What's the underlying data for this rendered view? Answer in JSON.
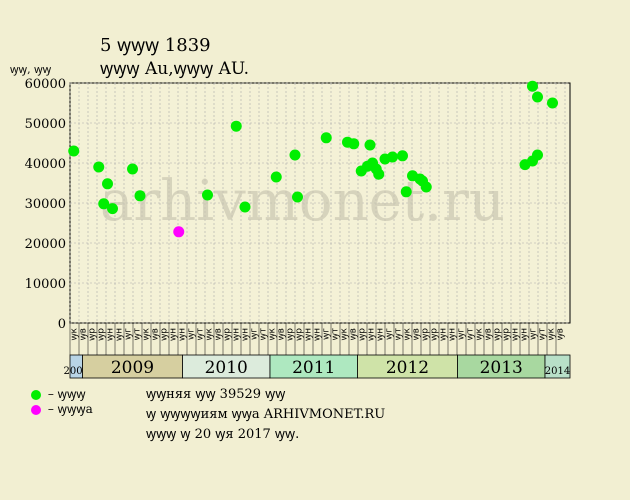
{
  "header": {
    "line1": "5 ꝡꝡꝡ 1839",
    "line2": "ꝡꝡꝡ Au,ꝡꝡꝡ AU."
  },
  "watermark": "arhivmonet.ru",
  "legend": {
    "green": {
      "label": "– ꝡꝡꝡ",
      "color": "#00ee00"
    },
    "magenta": {
      "label": "– ꝡꝡꝡa",
      "color": "#ff00ff"
    }
  },
  "info": {
    "line1": "ꝡꝡняя ꝡꝡ 39529 ꝡꝡ",
    "line2": "ꝡ ꝡꝡꝡꝡиям ꝡꝡa ARHIVMONET.RU",
    "line3": "ꝡꝡꝡ ꝡ 20 ꝡя 2017 ꝡꝡ."
  },
  "chart_data": {
    "type": "scatter",
    "ylabel": "ꝡꝡ, ꝡꝡ",
    "ylim": [
      0,
      60000
    ],
    "yticks": [
      0,
      10000,
      20000,
      30000,
      40000,
      50000,
      60000
    ],
    "grid": true,
    "x_slots": [
      "ꝡк",
      "ꝡв",
      "ꝡр",
      "ꝡр",
      "ꝡн",
      "ꝡн",
      "ꝡг",
      "ꝡт",
      "ꝡк",
      "ꝡв",
      "ꝡр",
      "ꝡн",
      "ꝡн",
      "ꝡг",
      "ꝡт",
      "ꝡк",
      "ꝡв",
      "ꝡр",
      "ꝡн",
      "ꝡн",
      "ꝡг",
      "ꝡт",
      "ꝡк",
      "ꝡв",
      "ꝡр",
      "ꝡр",
      "ꝡн",
      "ꝡн",
      "ꝡг",
      "ꝡт",
      "ꝡк",
      "ꝡв",
      "ꝡр",
      "ꝡн",
      "ꝡн",
      "ꝡг",
      "ꝡт",
      "ꝡк",
      "ꝡв",
      "ꝡр",
      "ꝡр",
      "ꝡн",
      "ꝡн",
      "ꝡг",
      "ꝡт",
      "ꝡк",
      "ꝡв",
      "ꝡр",
      "ꝡр",
      "ꝡн",
      "ꝡн",
      "ꝡг",
      "ꝡт",
      "ꝡк",
      "ꝡв",
      "ꝡр"
    ],
    "years": [
      {
        "label": "2008",
        "start": 0,
        "end": 1,
        "color": "#b8d4e6",
        "small": true
      },
      {
        "label": "2009",
        "start": 1,
        "end": 9,
        "color": "#d6cfa0",
        "small": false
      },
      {
        "label": "2010",
        "start": 9,
        "end": 16,
        "color": "#dcebdc",
        "small": false
      },
      {
        "label": "2011",
        "start": 16,
        "end": 23,
        "color": "#aee8c0",
        "small": false
      },
      {
        "label": "2012",
        "start": 23,
        "end": 31,
        "color": "#cfe3a8",
        "small": false
      },
      {
        "label": "2013",
        "start": 31,
        "end": 38,
        "color": "#a8d8a0",
        "small": false
      },
      {
        "label": "2014",
        "start": 38,
        "end": 40,
        "color": "#b8e0c8",
        "small": true
      }
    ],
    "series": [
      {
        "key": "green",
        "points": [
          [
            0.3,
            43000
          ],
          [
            2.3,
            39000
          ],
          [
            2.7,
            29800
          ],
          [
            3.0,
            34800
          ],
          [
            3.4,
            28600
          ],
          [
            5.0,
            38500
          ],
          [
            5.6,
            31800
          ],
          [
            11.0,
            32000
          ],
          [
            13.3,
            49200
          ],
          [
            14.0,
            29000
          ],
          [
            16.5,
            36500
          ],
          [
            18.0,
            42000
          ],
          [
            18.2,
            31500
          ],
          [
            20.5,
            46300
          ],
          [
            22.2,
            45200
          ],
          [
            22.7,
            44800
          ],
          [
            23.3,
            38000
          ],
          [
            23.8,
            39200
          ],
          [
            24.2,
            40000
          ],
          [
            24.0,
            44500
          ],
          [
            24.5,
            38500
          ],
          [
            24.7,
            37200
          ],
          [
            25.2,
            41000
          ],
          [
            25.8,
            41500
          ],
          [
            26.6,
            41800
          ],
          [
            26.9,
            32800
          ],
          [
            27.4,
            36800
          ],
          [
            28.0,
            36000
          ],
          [
            28.2,
            35500
          ],
          [
            28.5,
            34000
          ],
          [
            36.4,
            39600
          ],
          [
            37.0,
            40500
          ],
          [
            37.0,
            59200
          ],
          [
            37.4,
            42000
          ],
          [
            37.4,
            56500
          ],
          [
            38.6,
            55000
          ]
        ]
      },
      {
        "key": "magenta",
        "points": [
          [
            8.7,
            22800
          ]
        ]
      }
    ]
  }
}
